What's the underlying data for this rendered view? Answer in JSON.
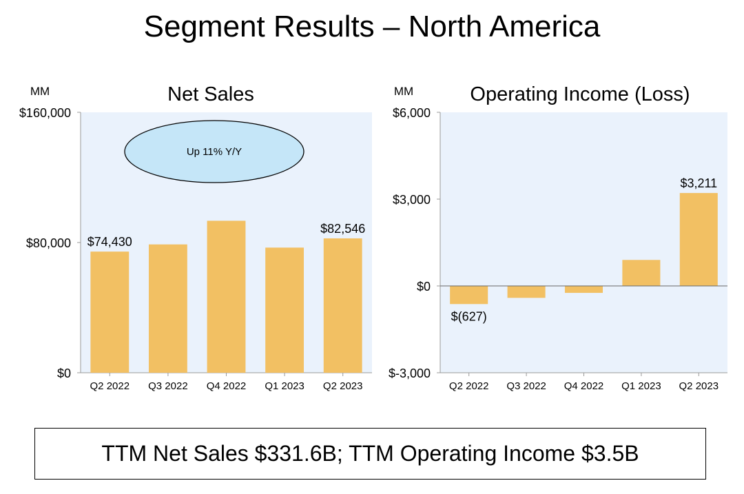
{
  "title": "Segment Results – North America",
  "footer": "TTM Net Sales $331.6B; TTM Operating Income $3.5B",
  "colors": {
    "bar": "#F2C063",
    "plot_bg": "#EAF2FC",
    "callout": "#C5E6F8"
  },
  "chart_data": [
    {
      "type": "bar",
      "title": "Net Sales",
      "unit_label": "MM",
      "categories": [
        "Q2 2022",
        "Q3 2022",
        "Q4 2022",
        "Q1 2023",
        "Q2 2023"
      ],
      "values": [
        74430,
        78843,
        93363,
        76881,
        82546
      ],
      "data_labels": [
        "$74,430",
        null,
        null,
        null,
        "$82,546"
      ],
      "ylim": [
        0,
        160000
      ],
      "yticks": [
        0,
        80000,
        160000
      ],
      "ytick_labels": [
        "$0",
        "$80,000",
        "$160,000"
      ],
      "annotation": "Up 11% Y/Y"
    },
    {
      "type": "bar",
      "title": "Operating Income (Loss)",
      "unit_label": "MM",
      "categories": [
        "Q2 2022",
        "Q3 2022",
        "Q4 2022",
        "Q1 2023",
        "Q2 2023"
      ],
      "values": [
        -627,
        -412,
        -240,
        898,
        3211
      ],
      "data_labels": [
        "$(627)",
        null,
        null,
        null,
        "$3,211"
      ],
      "ylim": [
        -3000,
        6000
      ],
      "yticks": [
        -3000,
        0,
        3000,
        6000
      ],
      "ytick_labels": [
        "$-3,000",
        "$0",
        "$3,000",
        "$6,000"
      ]
    }
  ]
}
